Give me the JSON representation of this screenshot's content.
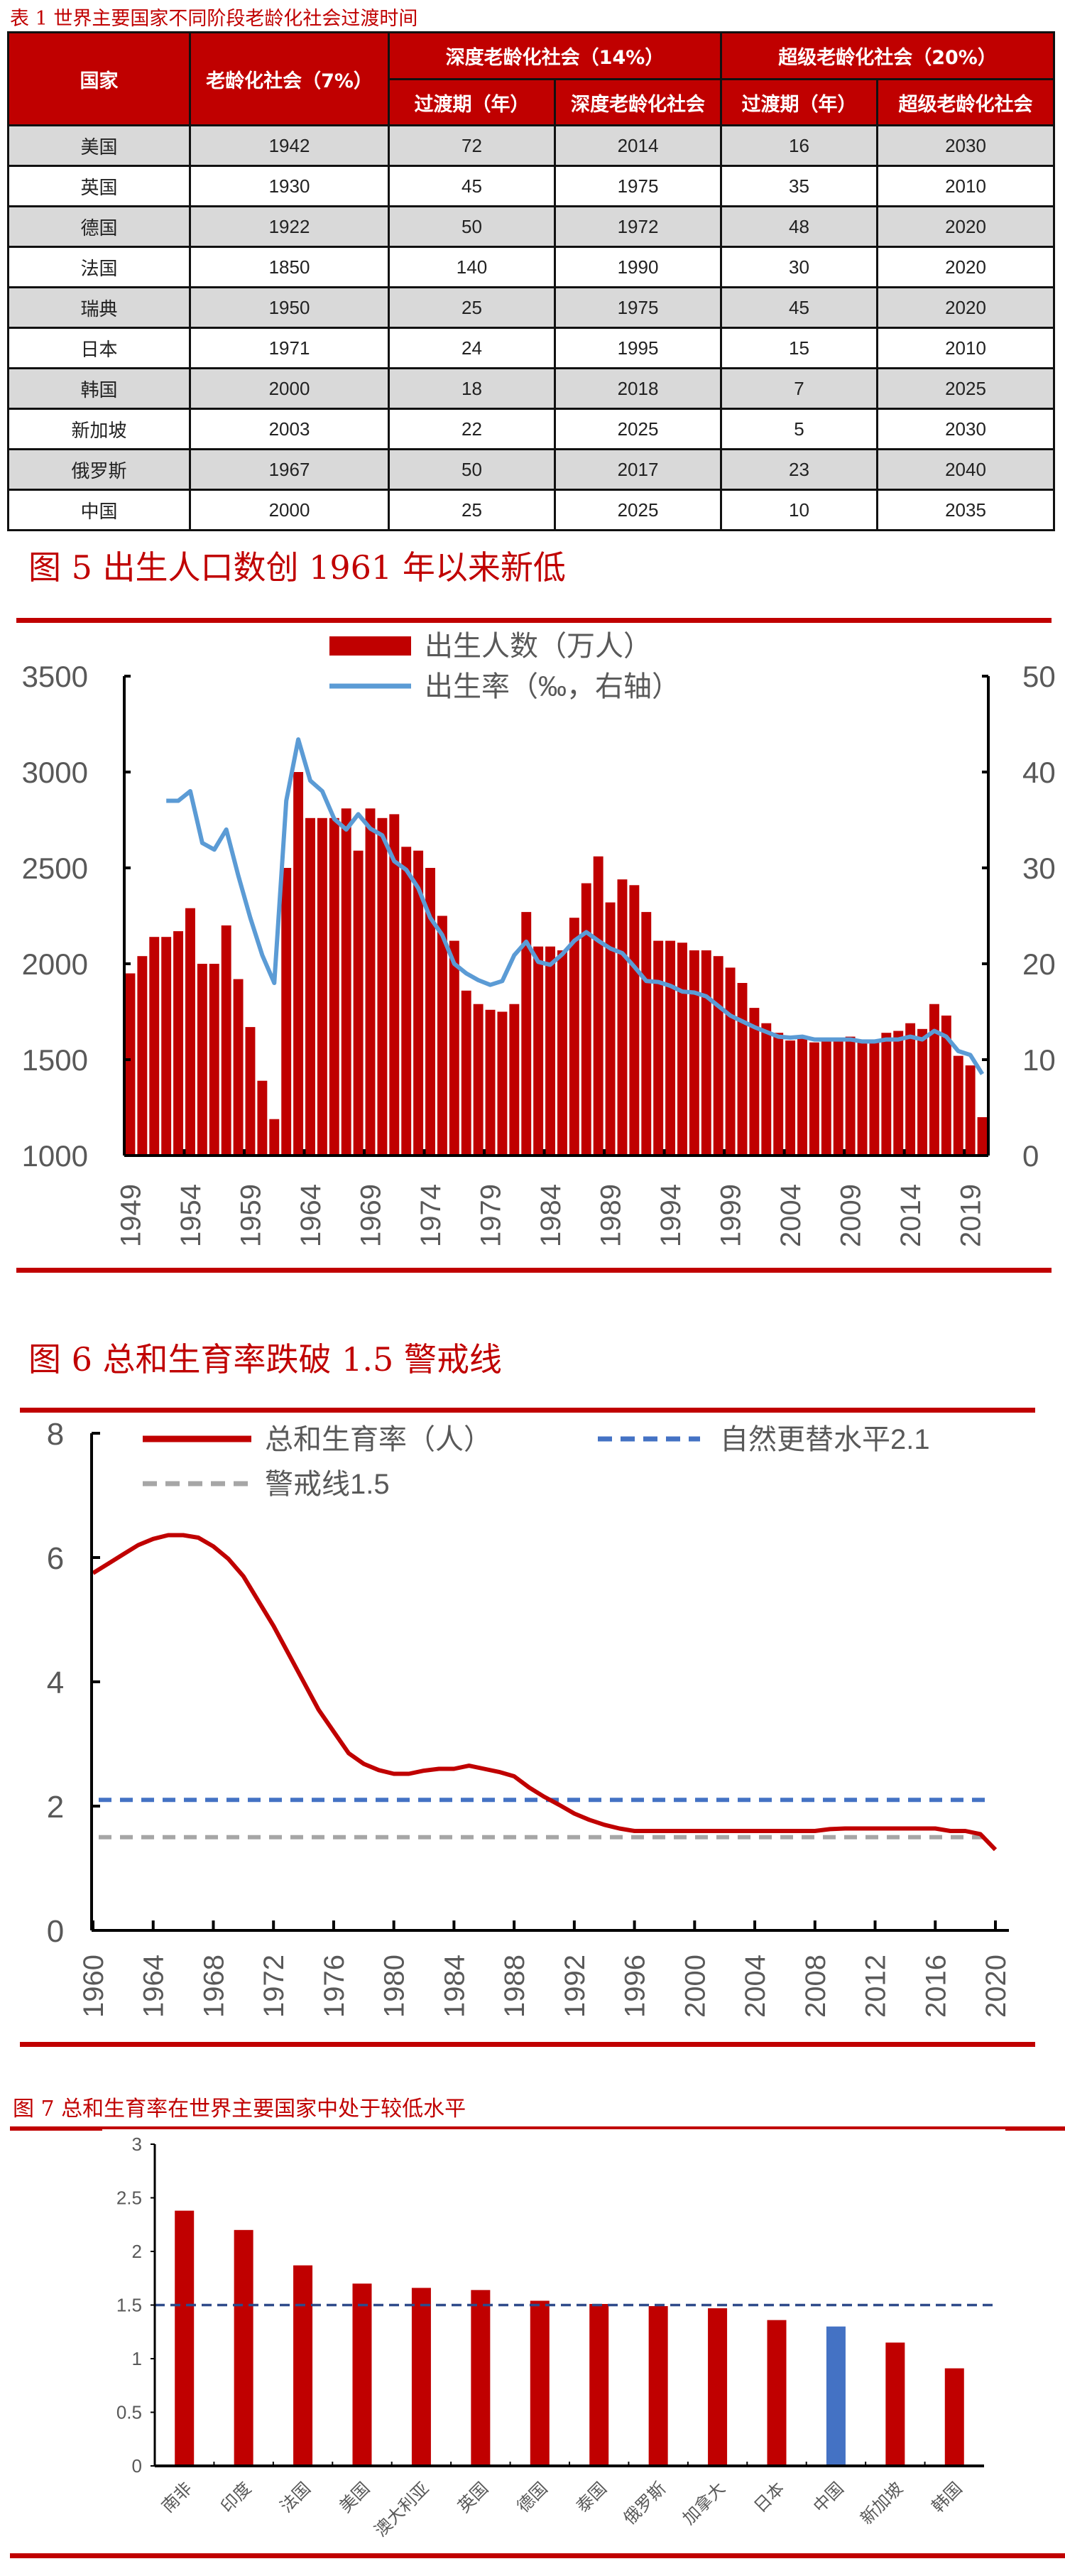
{
  "table": {
    "title": "表 1   世界主要国家不同阶段老龄化社会过渡时间",
    "headers": {
      "country": "国家",
      "aging": "老龄化社会（7%）",
      "deep_group": "深度老龄化社会（14%）",
      "super_group": "超级老龄化社会（20%）",
      "deep_transition": "过渡期（年）",
      "deep_year": "深度老龄化社会",
      "super_transition": "过渡期（年）",
      "super_year": "超级老龄化社会"
    },
    "rows": [
      [
        "美国",
        "1942",
        "72",
        "2014",
        "16",
        "2030"
      ],
      [
        "英国",
        "1930",
        "45",
        "1975",
        "35",
        "2010"
      ],
      [
        "德国",
        "1922",
        "50",
        "1972",
        "48",
        "2020"
      ],
      [
        "法国",
        "1850",
        "140",
        "1990",
        "30",
        "2020"
      ],
      [
        "瑞典",
        "1950",
        "25",
        "1975",
        "45",
        "2020"
      ],
      [
        "日本",
        "1971",
        "24",
        "1995",
        "15",
        "2010"
      ],
      [
        "韩国",
        "2000",
        "18",
        "2018",
        "7",
        "2025"
      ],
      [
        "新加坡",
        "2003",
        "22",
        "2025",
        "5",
        "2030"
      ],
      [
        "俄罗斯",
        "1967",
        "50",
        "2017",
        "23",
        "2040"
      ],
      [
        "中国",
        "2000",
        "25",
        "2025",
        "10",
        "2035"
      ]
    ]
  },
  "colors": {
    "red": "#C00000",
    "blue": "#5B9BD5",
    "blue_dash": "#4472C4",
    "gray_dash": "#A6A6A6",
    "navy_dash": "#2F4B8A",
    "china_bar": "#4472C4",
    "axis_text": "#595959"
  },
  "chart_data": [
    {
      "type": "bar",
      "title": "图 5  出生人口数创 1961 年以来新低",
      "x_start": 1949,
      "x_tick_labels": [
        "1949",
        "1954",
        "1959",
        "1964",
        "1969",
        "1974",
        "1979",
        "1984",
        "1989",
        "1994",
        "1999",
        "2004",
        "2009",
        "2014",
        "2019"
      ],
      "y_left_ticks": [
        "1000",
        "1500",
        "2000",
        "2500",
        "3000",
        "3500"
      ],
      "y_left_range": [
        1000,
        3500
      ],
      "y_right_ticks": [
        "0",
        "10",
        "20",
        "30",
        "40",
        "50"
      ],
      "y_right_range": [
        0,
        50
      ],
      "legend": [
        "出生人数（万人）",
        "出生率（‰，右轴）"
      ],
      "legend_position": "top-center",
      "series": [
        {
          "name": "出生人数（万人）",
          "type": "bar",
          "axis": "left",
          "values": [
            1950,
            2040,
            2140,
            2140,
            2170,
            2290,
            2000,
            2000,
            2200,
            1920,
            1670,
            1390,
            1190,
            2500,
            3000,
            2760,
            2760,
            2760,
            2810,
            2590,
            2810,
            2760,
            2780,
            2610,
            2590,
            2500,
            2250,
            2120,
            1860,
            1790,
            1760,
            1750,
            1790,
            2270,
            2090,
            2090,
            2070,
            2240,
            2420,
            2560,
            2320,
            2440,
            2410,
            2270,
            2120,
            2120,
            2110,
            2070,
            2070,
            2040,
            1980,
            1900,
            1770,
            1690,
            1640,
            1600,
            1620,
            1590,
            1600,
            1610,
            1620,
            1590,
            1600,
            1640,
            1650,
            1690,
            1660,
            1790,
            1730,
            1520,
            1470,
            1200
          ]
        },
        {
          "name": "出生率（‰，右轴）",
          "type": "line",
          "axis": "right",
          "values": [
            null,
            null,
            null,
            37,
            37,
            38,
            32.6,
            31.9,
            34,
            29.2,
            24.8,
            20.9,
            18,
            37,
            43.4,
            39.1,
            38,
            35.1,
            34,
            35.6,
            34.1,
            33.4,
            30.7,
            29.8,
            27.9,
            24.8,
            23,
            20,
            19,
            18.3,
            17.8,
            18.2,
            20.9,
            22.3,
            20.2,
            19.9,
            21,
            22.4,
            23.3,
            22.4,
            21.6,
            21.1,
            19.7,
            18.2,
            18.1,
            17.7,
            17.1,
            17,
            16.6,
            15.6,
            14.6,
            14,
            13.4,
            12.9,
            12.4,
            12.3,
            12.4,
            12.1,
            12.1,
            12.1,
            12.1,
            11.9,
            11.9,
            12.1,
            12.1,
            12.4,
            12.1,
            13,
            12.4,
            10.9,
            10.5,
            8.5
          ]
        }
      ]
    },
    {
      "type": "line",
      "title": "图 6  总和生育率跌破 1.5 警戒线",
      "x_start": 1960,
      "x_tick_labels": [
        "1960",
        "1964",
        "1968",
        "1972",
        "1976",
        "1980",
        "1984",
        "1988",
        "1992",
        "1996",
        "2000",
        "2004",
        "2008",
        "2012",
        "2016",
        "2020"
      ],
      "y_ticks": [
        "0",
        "2",
        "4",
        "6",
        "8"
      ],
      "y_range": [
        0,
        8
      ],
      "legend": [
        "总和生育率（人）",
        "自然更替水平2.1",
        "警戒线1.5"
      ],
      "legend_position": "top",
      "series": [
        {
          "name": "总和生育率（人）",
          "values": [
            5.75,
            5.9,
            6.05,
            6.2,
            6.3,
            6.36,
            6.36,
            6.32,
            6.18,
            5.98,
            5.7,
            5.3,
            4.9,
            4.45,
            4.0,
            3.55,
            3.2,
            2.85,
            2.68,
            2.58,
            2.52,
            2.52,
            2.57,
            2.6,
            2.6,
            2.65,
            2.6,
            2.55,
            2.48,
            2.3,
            2.15,
            2.02,
            1.88,
            1.78,
            1.7,
            1.64,
            1.6,
            1.6,
            1.6,
            1.6,
            1.6,
            1.6,
            1.6,
            1.6,
            1.6,
            1.6,
            1.6,
            1.6,
            1.6,
            1.63,
            1.64,
            1.64,
            1.64,
            1.64,
            1.64,
            1.64,
            1.64,
            1.6,
            1.6,
            1.55,
            1.3
          ]
        },
        {
          "name": "自然更替水平2.1",
          "value": 2.1
        },
        {
          "name": "警戒线1.5",
          "value": 1.5
        }
      ]
    },
    {
      "type": "bar",
      "title": "图 7 总和生育率在世界主要国家中处于较低水平",
      "categories": [
        "南非",
        "印度",
        "法国",
        "美国",
        "澳大利亚",
        "英国",
        "德国",
        "泰国",
        "俄罗斯",
        "加拿大",
        "日本",
        "中国",
        "新加坡",
        "韩国"
      ],
      "values": [
        2.38,
        2.2,
        1.87,
        1.7,
        1.66,
        1.64,
        1.54,
        1.51,
        1.49,
        1.47,
        1.36,
        1.3,
        1.15,
        0.91
      ],
      "highlight": "中国",
      "reference_line": 1.5,
      "y_ticks": [
        "0",
        "0.5",
        "1",
        "1.5",
        "2",
        "2.5",
        "3"
      ],
      "y_range": [
        0,
        3
      ]
    }
  ]
}
